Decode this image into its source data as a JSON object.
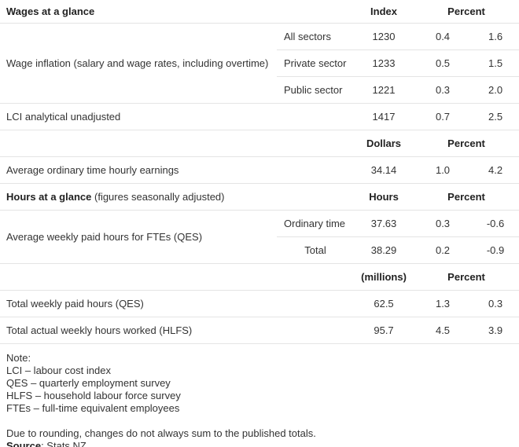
{
  "wages": {
    "title": "Wages at a glance",
    "col_index": "Index",
    "col_percent": "Percent",
    "wage_inflation": {
      "label": "Wage inflation (salary and wage rates, including overtime)",
      "rows": [
        {
          "sector": "All sectors",
          "index": "1230",
          "p1": "0.4",
          "p2": "1.6"
        },
        {
          "sector": "Private sector",
          "index": "1233",
          "p1": "0.5",
          "p2": "1.5"
        },
        {
          "sector": "Public sector",
          "index": "1221",
          "p1": "0.3",
          "p2": "2.0"
        }
      ]
    },
    "lci": {
      "label": "LCI analytical unadjusted",
      "index": "1417",
      "p1": "0.7",
      "p2": "2.5"
    },
    "col_dollars": "Dollars",
    "col_percent2": "Percent",
    "earnings": {
      "label": "Average ordinary time hourly earnings",
      "value": "34.14",
      "p1": "1.0",
      "p2": "4.2"
    }
  },
  "hours": {
    "title": "Hours at a glance",
    "title_note": "(figures seasonally adjusted)",
    "col_hours": "Hours",
    "col_percent": "Percent",
    "fte": {
      "label": "Average weekly paid hours for FTEs (QES)",
      "rows": [
        {
          "type": "Ordinary time",
          "value": "37.63",
          "p1": "0.3",
          "p2": "-0.6"
        },
        {
          "type": "Total",
          "value": "38.29",
          "p1": "0.2",
          "p2": "-0.9"
        }
      ]
    },
    "col_millions": "(millions)",
    "col_percent2": "Percent",
    "paid": {
      "label": "Total weekly paid hours (QES)",
      "value": "62.5",
      "p1": "1.3",
      "p2": "0.3"
    },
    "worked": {
      "label": "Total actual weekly hours worked (HLFS)",
      "value": "95.7",
      "p1": "4.5",
      "p2": "3.9"
    }
  },
  "notes": {
    "heading": "Note:",
    "lines": [
      "LCI – labour cost index",
      "QES – quarterly employment survey",
      "HLFS – household labour force survey",
      "FTEs – full-time equivalent employees"
    ],
    "rounding": "Due to rounding, changes do not always sum to the published totals.",
    "source_label": "Source",
    "source_value": ": Stats NZ"
  }
}
